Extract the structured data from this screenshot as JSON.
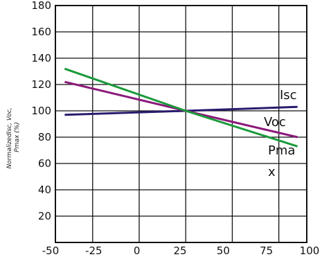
{
  "chart_data": {
    "type": "line",
    "ylabel": "NormalizedIsc, Voc, Pmax (%)",
    "ylabel_lines": [
      "NormalizedIsc, Voc,",
      "Pmax (%)"
    ],
    "xlim": [
      -45,
      90
    ],
    "ylim": [
      0,
      180
    ],
    "x_ticks": [
      "-50",
      "-25",
      "0",
      "25",
      "50",
      "75",
      "100"
    ],
    "y_ticks": [
      "20",
      "40",
      "60",
      "80",
      "100",
      "120",
      "140",
      "160",
      "180"
    ],
    "grid": true,
    "series": [
      {
        "name": "Isc",
        "label_lines": [
          "Isc"
        ],
        "color": "#2a1a6e",
        "x": [
          -40,
          25,
          85
        ],
        "y": [
          97,
          100,
          103
        ]
      },
      {
        "name": "Voc",
        "label_lines": [
          "Voc"
        ],
        "color": "#8b1a7a",
        "x": [
          -40,
          25,
          85
        ],
        "y": [
          122,
          100,
          80
        ]
      },
      {
        "name": "Pmax",
        "label_lines": [
          "Pma",
          "x"
        ],
        "color": "#1a9a3a",
        "x": [
          -40,
          25,
          85
        ],
        "y": [
          132,
          100,
          73
        ]
      }
    ]
  }
}
